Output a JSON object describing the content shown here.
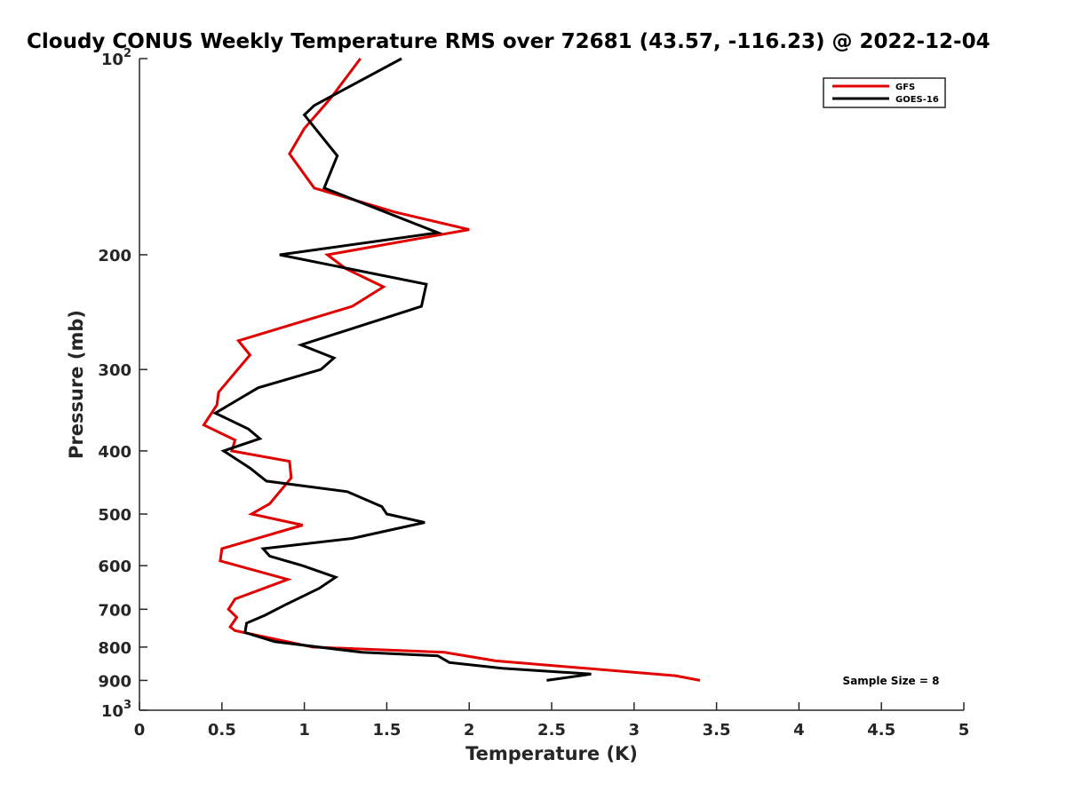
{
  "chart_data": {
    "type": "line",
    "orientation": "vertical-profile",
    "title": "Cloudy CONUS Weekly Temperature RMS over 72681 (43.57, -116.23) @ 2022-12-04",
    "xlabel": "Temperature (K)",
    "ylabel": "Pressure (mb)",
    "xlim": [
      0,
      5
    ],
    "ylim": [
      100,
      1000
    ],
    "y_scale": "log",
    "y_reversed": true,
    "grid": false,
    "legend_position": "top-right",
    "x_ticks": [
      "0",
      "0.5",
      "1",
      "1.5",
      "2",
      "2.5",
      "3",
      "3.5",
      "4",
      "4.5",
      "5"
    ],
    "y_ticks": [
      {
        "value": 100,
        "base": "10",
        "exp": "2"
      },
      {
        "value": 200,
        "label": "200"
      },
      {
        "value": 300,
        "label": "300"
      },
      {
        "value": 400,
        "label": "400"
      },
      {
        "value": 500,
        "label": "500"
      },
      {
        "value": 600,
        "label": "600"
      },
      {
        "value": 700,
        "label": "700"
      },
      {
        "value": 800,
        "label": "800"
      },
      {
        "value": 900,
        "label": "900"
      },
      {
        "value": 1000,
        "base": "10",
        "exp": "3"
      }
    ],
    "annotation": "Sample Size = 8",
    "series": [
      {
        "name": "GFS",
        "color": "#e00000",
        "points": [
          {
            "x": 1.34,
            "p": 100
          },
          {
            "x": 1.16,
            "p": 115
          },
          {
            "x": 1.0,
            "p": 128
          },
          {
            "x": 0.91,
            "p": 140
          },
          {
            "x": 1.06,
            "p": 158
          },
          {
            "x": 1.55,
            "p": 172
          },
          {
            "x": 2.0,
            "p": 183
          },
          {
            "x": 1.14,
            "p": 200
          },
          {
            "x": 1.25,
            "p": 210
          },
          {
            "x": 1.48,
            "p": 224
          },
          {
            "x": 1.29,
            "p": 240
          },
          {
            "x": 0.6,
            "p": 271
          },
          {
            "x": 0.67,
            "p": 285
          },
          {
            "x": 0.48,
            "p": 325
          },
          {
            "x": 0.47,
            "p": 340
          },
          {
            "x": 0.39,
            "p": 365
          },
          {
            "x": 0.58,
            "p": 385
          },
          {
            "x": 0.56,
            "p": 400
          },
          {
            "x": 0.91,
            "p": 415
          },
          {
            "x": 0.92,
            "p": 440
          },
          {
            "x": 0.79,
            "p": 482
          },
          {
            "x": 0.68,
            "p": 500
          },
          {
            "x": 0.99,
            "p": 520
          },
          {
            "x": 0.5,
            "p": 565
          },
          {
            "x": 0.49,
            "p": 590
          },
          {
            "x": 0.9,
            "p": 630
          },
          {
            "x": 0.58,
            "p": 675
          },
          {
            "x": 0.54,
            "p": 700
          },
          {
            "x": 0.59,
            "p": 720
          },
          {
            "x": 0.55,
            "p": 745
          },
          {
            "x": 0.58,
            "p": 755
          },
          {
            "x": 1.05,
            "p": 800
          },
          {
            "x": 1.85,
            "p": 815
          },
          {
            "x": 2.16,
            "p": 840
          },
          {
            "x": 3.25,
            "p": 885
          },
          {
            "x": 3.4,
            "p": 900
          }
        ]
      },
      {
        "name": "GOES-16",
        "color": "#000000",
        "points": [
          {
            "x": 1.59,
            "p": 100
          },
          {
            "x": 1.06,
            "p": 118
          },
          {
            "x": 1.0,
            "p": 122
          },
          {
            "x": 1.2,
            "p": 141
          },
          {
            "x": 1.12,
            "p": 158
          },
          {
            "x": 1.81,
            "p": 185
          },
          {
            "x": 0.85,
            "p": 200
          },
          {
            "x": 1.74,
            "p": 222
          },
          {
            "x": 1.71,
            "p": 240
          },
          {
            "x": 0.98,
            "p": 275
          },
          {
            "x": 1.18,
            "p": 288
          },
          {
            "x": 1.1,
            "p": 300
          },
          {
            "x": 0.72,
            "p": 320
          },
          {
            "x": 0.46,
            "p": 350
          },
          {
            "x": 0.66,
            "p": 370
          },
          {
            "x": 0.73,
            "p": 383
          },
          {
            "x": 0.51,
            "p": 400
          },
          {
            "x": 0.67,
            "p": 425
          },
          {
            "x": 0.77,
            "p": 445
          },
          {
            "x": 1.26,
            "p": 462
          },
          {
            "x": 1.47,
            "p": 487
          },
          {
            "x": 1.5,
            "p": 500
          },
          {
            "x": 1.73,
            "p": 515
          },
          {
            "x": 1.29,
            "p": 545
          },
          {
            "x": 0.75,
            "p": 565
          },
          {
            "x": 0.79,
            "p": 580
          },
          {
            "x": 0.99,
            "p": 600
          },
          {
            "x": 1.19,
            "p": 625
          },
          {
            "x": 1.09,
            "p": 650
          },
          {
            "x": 0.88,
            "p": 690
          },
          {
            "x": 0.76,
            "p": 715
          },
          {
            "x": 0.65,
            "p": 735
          },
          {
            "x": 0.64,
            "p": 760
          },
          {
            "x": 0.82,
            "p": 785
          },
          {
            "x": 1.35,
            "p": 815
          },
          {
            "x": 1.81,
            "p": 825
          },
          {
            "x": 1.88,
            "p": 845
          },
          {
            "x": 2.2,
            "p": 862
          },
          {
            "x": 2.74,
            "p": 880
          },
          {
            "x": 2.47,
            "p": 900
          }
        ]
      }
    ]
  }
}
